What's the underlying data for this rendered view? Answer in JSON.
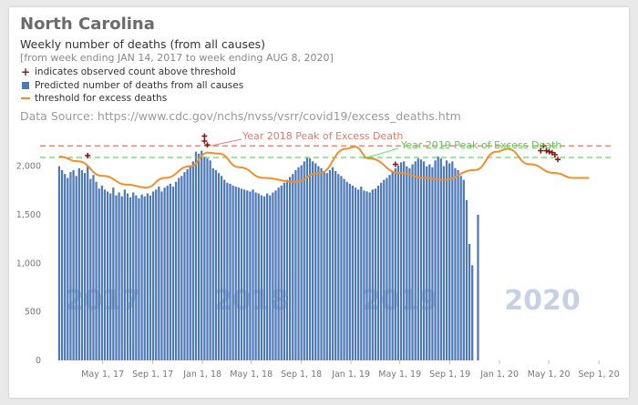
{
  "header": {
    "title": "North Carolina",
    "subtitle": "Weekly number of deaths (from all causes)",
    "date_range": "[from week ending JAN 14, 2017 to week ending AUG 8, 2020]",
    "source": "Data Source: https://www.cdc.gov/nchs/nvss/vsrr/covid19/excess_deaths.htm"
  },
  "legend": {
    "observed_above": "indicates observed count above threshold",
    "predicted": "Predicted number of deaths from all causes",
    "threshold": "threshold for excess deaths"
  },
  "annotations": {
    "peak_2018": "Year 2018 Peak of Excess Death",
    "peak_2019": "Year 2019 Peak of Excess Death"
  },
  "colors": {
    "bars": "#4e79b7",
    "threshold_line": "#f28e2b",
    "markers": "#8b1a1a",
    "peak_2018_line": "#e07a6a",
    "peak_2019_line": "#4cd64c"
  },
  "chart_data": {
    "type": "bar",
    "x_start": "2017-01-14",
    "x_step_days": 7,
    "ylim": [
      0,
      2400
    ],
    "yticks": [
      "0",
      "500",
      "1,000",
      "1,500",
      "2,000"
    ],
    "ytick_values": [
      0,
      500,
      1000,
      1500,
      2000
    ],
    "xticks": [
      {
        "label": "May 1, 17",
        "date": "2017-05-01"
      },
      {
        "label": "Sep 1, 17",
        "date": "2017-09-01"
      },
      {
        "label": "Jan 1, 18",
        "date": "2018-01-01"
      },
      {
        "label": "May 1, 18",
        "date": "2018-05-01"
      },
      {
        "label": "Sep 1, 18",
        "date": "2018-09-01"
      },
      {
        "label": "Jan 1, 19",
        "date": "2019-01-01"
      },
      {
        "label": "May 1, 19",
        "date": "2019-05-01"
      },
      {
        "label": "Sep 1, 19",
        "date": "2019-09-01"
      },
      {
        "label": "Jan 1, 20",
        "date": "2020-01-01"
      },
      {
        "label": "May 1, 20",
        "date": "2020-05-01"
      },
      {
        "label": "Sep 1, 20",
        "date": "2020-09-01"
      }
    ],
    "year_labels": [
      {
        "label": "2017",
        "date": "2017-05-01"
      },
      {
        "label": "2018",
        "date": "2018-05-01"
      },
      {
        "label": "2019",
        "date": "2019-05-01"
      },
      {
        "label": "2020",
        "date": "2020-04-15"
      }
    ],
    "peak_lines": [
      {
        "value": 2210,
        "style": "2018"
      },
      {
        "value": 2090,
        "style": "2019"
      }
    ],
    "threshold_anchors": [
      {
        "date": "2017-01-14",
        "value": 2100
      },
      {
        "date": "2017-03-01",
        "value": 2050
      },
      {
        "date": "2017-05-01",
        "value": 1900
      },
      {
        "date": "2017-07-01",
        "value": 1810
      },
      {
        "date": "2017-08-15",
        "value": 1780
      },
      {
        "date": "2017-10-01",
        "value": 1880
      },
      {
        "date": "2017-12-01",
        "value": 2000
      },
      {
        "date": "2018-01-15",
        "value": 2140
      },
      {
        "date": "2018-02-10",
        "value": 2130
      },
      {
        "date": "2018-04-01",
        "value": 1990
      },
      {
        "date": "2018-06-01",
        "value": 1880
      },
      {
        "date": "2018-08-15",
        "value": 1840
      },
      {
        "date": "2018-10-15",
        "value": 1930
      },
      {
        "date": "2018-12-20",
        "value": 2180
      },
      {
        "date": "2019-01-10",
        "value": 2200
      },
      {
        "date": "2019-02-15",
        "value": 2080
      },
      {
        "date": "2019-05-01",
        "value": 1930
      },
      {
        "date": "2019-07-01",
        "value": 1880
      },
      {
        "date": "2019-08-15",
        "value": 1860
      },
      {
        "date": "2019-11-01",
        "value": 1960
      },
      {
        "date": "2019-12-25",
        "value": 2150
      },
      {
        "date": "2020-01-20",
        "value": 2180
      },
      {
        "date": "2020-03-15",
        "value": 2020
      },
      {
        "date": "2020-05-15",
        "value": 1930
      },
      {
        "date": "2020-07-01",
        "value": 1880
      },
      {
        "date": "2020-08-08",
        "value": 1880
      }
    ],
    "values": [
      2000,
      1960,
      1920,
      1880,
      1940,
      1960,
      1900,
      1980,
      1960,
      1930,
      2000,
      1870,
      1910,
      1840,
      1770,
      1800,
      1760,
      1740,
      1720,
      1780,
      1700,
      1730,
      1690,
      1760,
      1720,
      1680,
      1730,
      1700,
      1670,
      1710,
      1690,
      1720,
      1700,
      1740,
      1760,
      1790,
      1740,
      1780,
      1800,
      1820,
      1790,
      1840,
      1880,
      1900,
      1940,
      1970,
      2010,
      2050,
      2150,
      2130,
      2160,
      2100,
      2080,
      2060,
      1980,
      1960,
      1930,
      1900,
      1860,
      1830,
      1820,
      1800,
      1790,
      1780,
      1770,
      1760,
      1750,
      1740,
      1760,
      1730,
      1720,
      1700,
      1690,
      1720,
      1700,
      1730,
      1750,
      1780,
      1800,
      1830,
      1860,
      1890,
      1920,
      1960,
      1990,
      2010,
      2050,
      2090,
      2080,
      2050,
      2030,
      2000,
      1980,
      1950,
      1930,
      1960,
      1990,
      1950,
      1920,
      1900,
      1870,
      1840,
      1820,
      1800,
      1780,
      1760,
      1790,
      1750,
      1740,
      1730,
      1760,
      1770,
      1800,
      1830,
      1860,
      1880,
      1910,
      1950,
      1980,
      2010,
      2040,
      2050,
      2000,
      1980,
      2020,
      2050,
      2080,
      2070,
      2050,
      2000,
      2020,
      1990,
      2060,
      2100,
      2080,
      2000,
      2060,
      2030,
      2050,
      1980,
      1960,
      1900,
      1860,
      1650,
      1200,
      980,
      0,
      1500
    ],
    "markers": [
      {
        "date": "2017-03-25",
        "value": 2110
      },
      {
        "date": "2018-01-06",
        "value": 2260
      },
      {
        "date": "2018-01-06",
        "value": 2310
      },
      {
        "date": "2018-01-13",
        "value": 2220
      },
      {
        "date": "2019-04-20",
        "value": 2020
      },
      {
        "date": "2020-04-11",
        "value": 2160
      },
      {
        "date": "2020-04-18",
        "value": 2210
      },
      {
        "date": "2020-04-25",
        "value": 2160
      },
      {
        "date": "2020-05-02",
        "value": 2150
      },
      {
        "date": "2020-05-09",
        "value": 2140
      },
      {
        "date": "2020-05-16",
        "value": 2120
      },
      {
        "date": "2020-05-23",
        "value": 2070
      }
    ]
  }
}
